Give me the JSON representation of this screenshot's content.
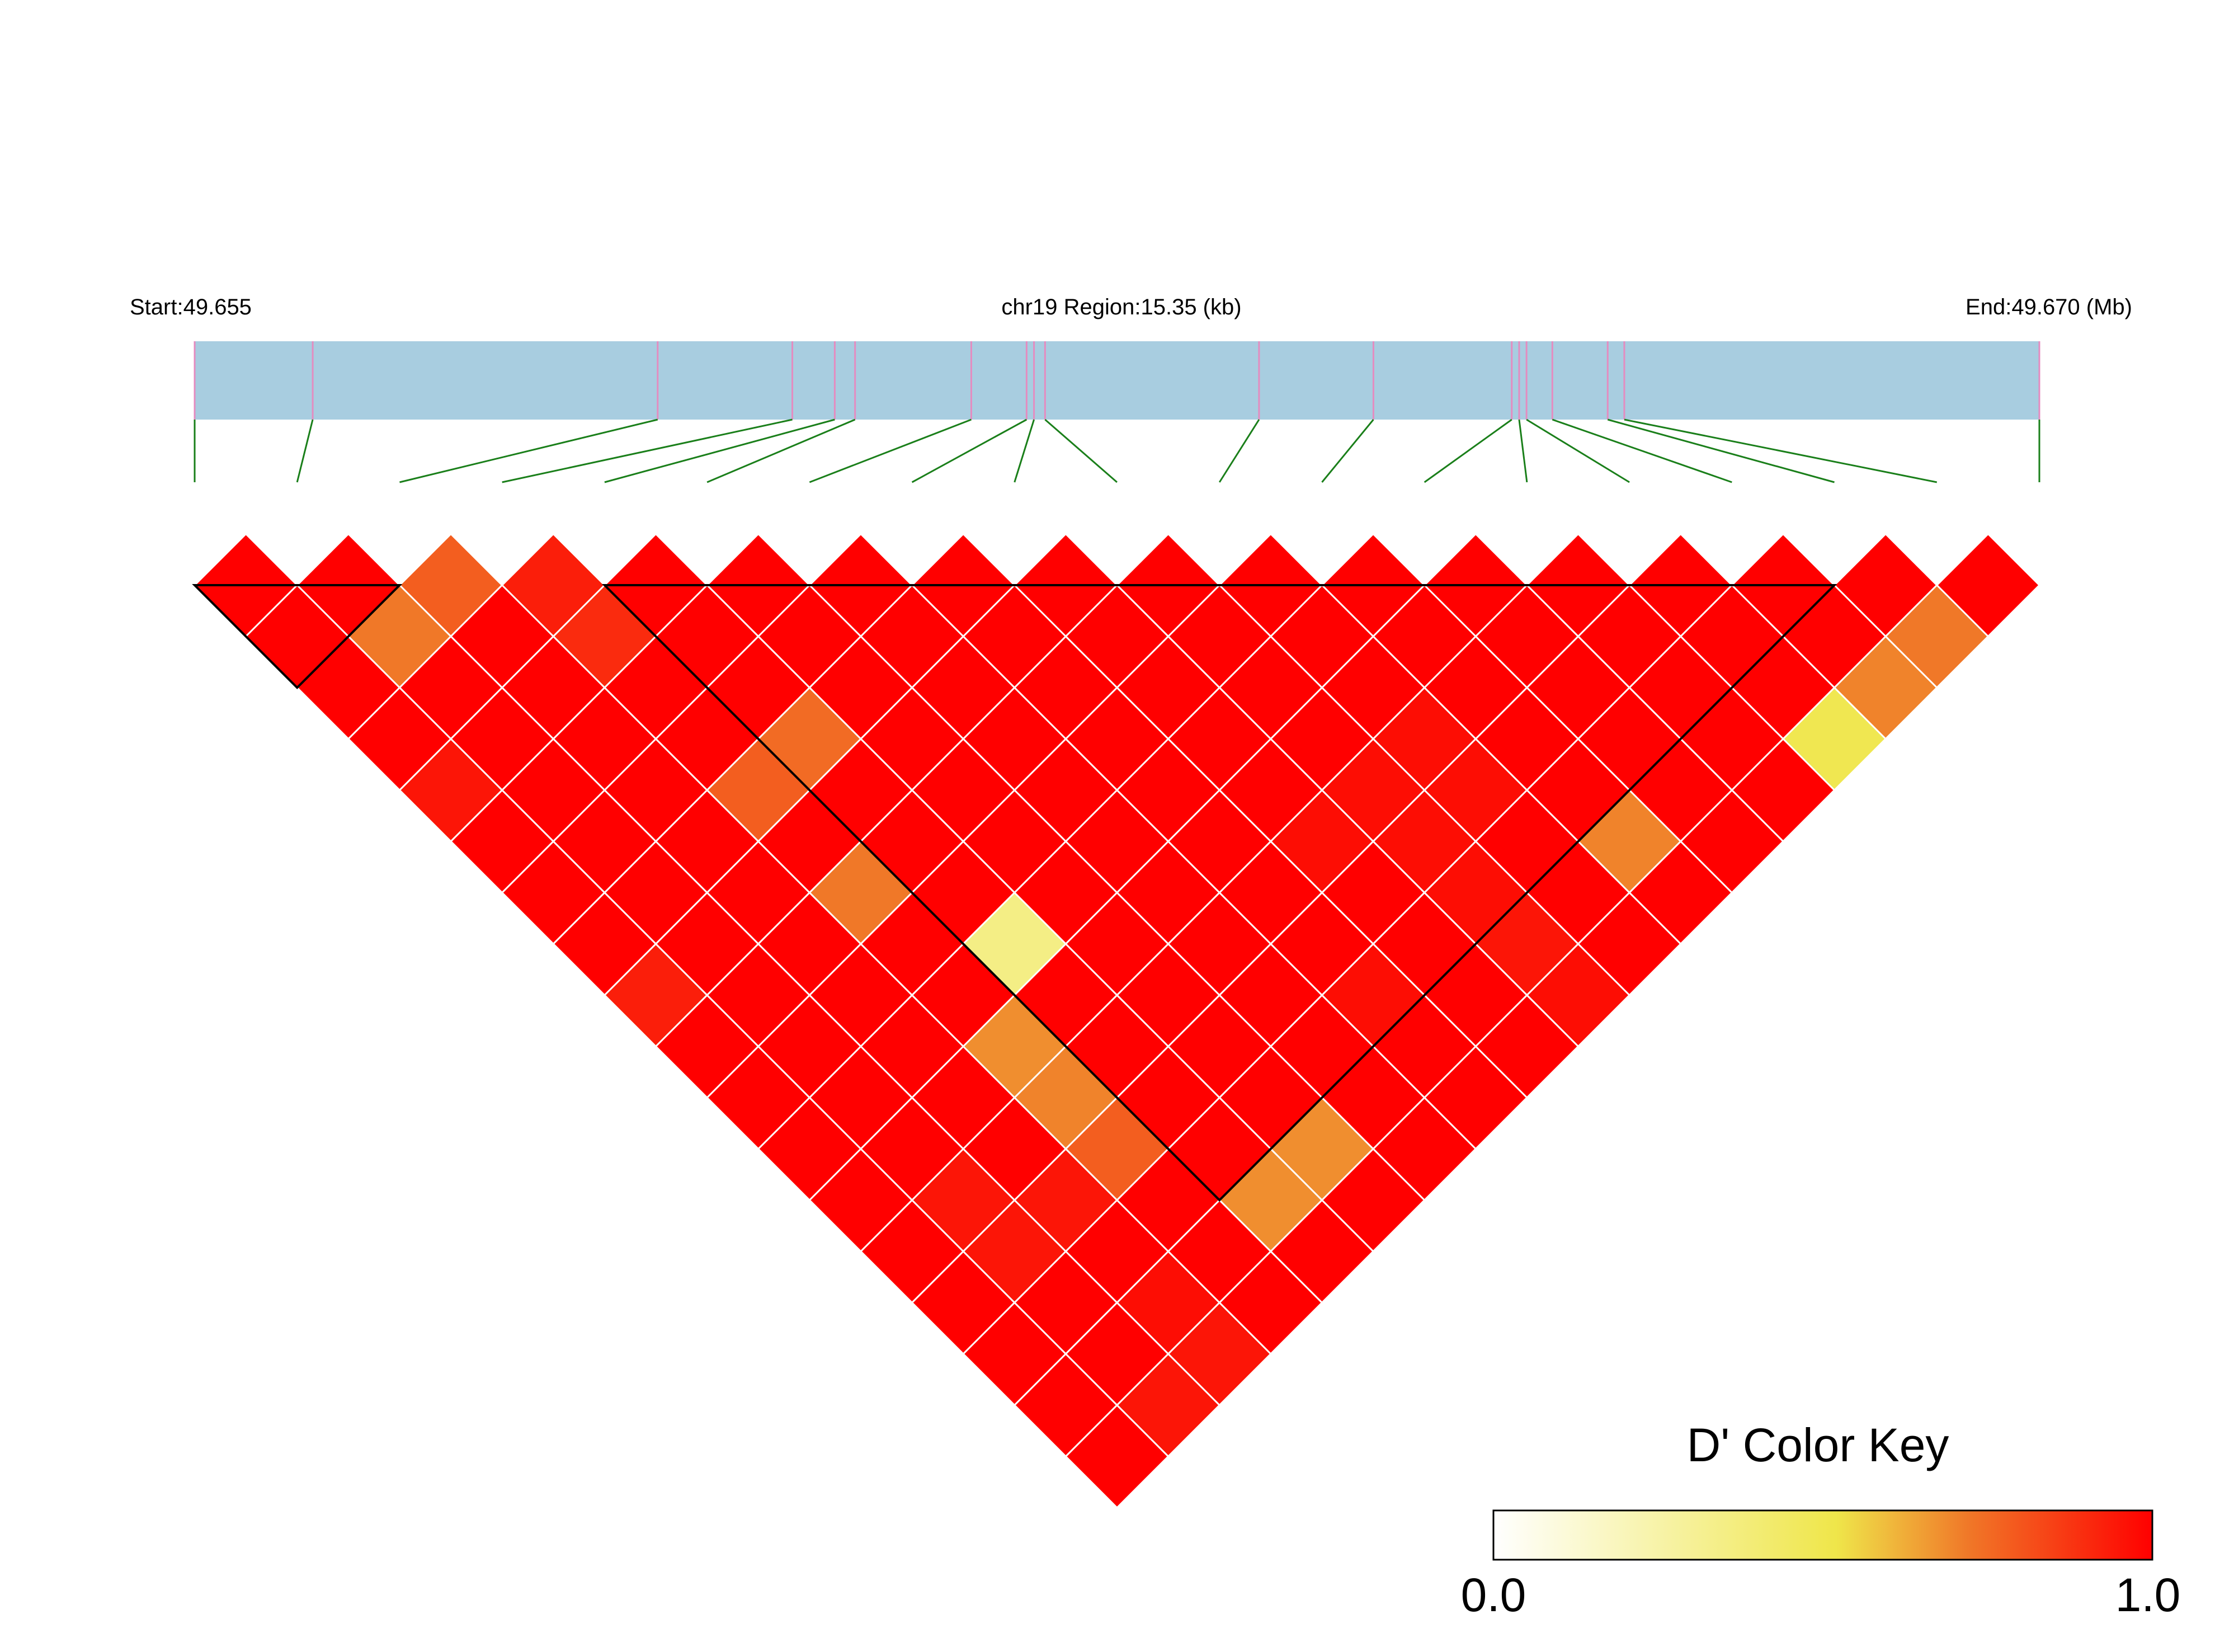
{
  "chart_data": {
    "type": "heatmap",
    "title": "",
    "header": {
      "start_label": "Start:49.655",
      "region_label": "chr19 Region:15.35 (kb)",
      "end_label": "End:49.670 (Mb)"
    },
    "region": {
      "chromosome": "chr19",
      "start_mb": 49.655,
      "end_mb": 49.67,
      "length_kb": 15.35
    },
    "snp_count": 19,
    "snp_positions_fraction": [
      0.0,
      0.064,
      0.251,
      0.324,
      0.347,
      0.358,
      0.421,
      0.451,
      0.455,
      0.461,
      0.577,
      0.639,
      0.714,
      0.718,
      0.722,
      0.736,
      0.766,
      0.775,
      1.0
    ],
    "ld_matrix_description": "D' values for pairs (i, j) with i < j; row k holds pairs (i, i+k+1)",
    "d_prime": [
      [
        1.0,
        1.0,
        0.78,
        0.93,
        1.0,
        1.0,
        1.0,
        1.0,
        1.0,
        1.0,
        1.0,
        1.0,
        1.0,
        1.0,
        1.0,
        1.0,
        1.0,
        1.0
      ],
      [
        1.0,
        0.72,
        1.0,
        0.9,
        1.0,
        1.0,
        1.0,
        1.0,
        1.0,
        1.0,
        1.0,
        1.0,
        1.0,
        1.0,
        1.0,
        1.0,
        0.72
      ],
      [
        1.0,
        1.0,
        1.0,
        1.0,
        1.0,
        1.0,
        1.0,
        1.0,
        1.0,
        1.0,
        1.0,
        1.0,
        1.0,
        1.0,
        1.0,
        0.7
      ],
      [
        1.0,
        1.0,
        1.0,
        1.0,
        0.75,
        1.0,
        1.0,
        1.0,
        1.0,
        1.0,
        0.97,
        1.0,
        1.0,
        1.0,
        0.5
      ],
      [
        0.95,
        1.0,
        1.0,
        0.78,
        1.0,
        1.0,
        1.0,
        1.0,
        1.0,
        0.97,
        0.97,
        1.0,
        1.0,
        1.0
      ],
      [
        1.0,
        1.0,
        1.0,
        1.0,
        1.0,
        1.0,
        1.0,
        1.0,
        0.97,
        0.97,
        1.0,
        0.7,
        1.0
      ],
      [
        1.0,
        1.0,
        1.0,
        0.72,
        1.0,
        1.0,
        1.0,
        1.0,
        1.0,
        0.97,
        1.0,
        1.0
      ],
      [
        1.0,
        1.0,
        1.0,
        1.0,
        0.35,
        1.0,
        1.0,
        1.0,
        1.0,
        0.95,
        1.0
      ],
      [
        0.93,
        1.0,
        1.0,
        1.0,
        1.0,
        1.0,
        1.0,
        0.97,
        1.0,
        0.97
      ],
      [
        1.0,
        1.0,
        1.0,
        0.68,
        1.0,
        1.0,
        1.0,
        1.0,
        1.0
      ],
      [
        1.0,
        1.0,
        1.0,
        0.7,
        1.0,
        1.0,
        1.0,
        1.0
      ],
      [
        1.0,
        1.0,
        1.0,
        0.78,
        1.0,
        0.68,
        1.0
      ],
      [
        1.0,
        0.95,
        0.95,
        1.0,
        0.68,
        1.0
      ],
      [
        1.0,
        0.95,
        1.0,
        1.0,
        1.0
      ],
      [
        1.0,
        1.0,
        0.97,
        1.0
      ],
      [
        1.0,
        1.0,
        0.95
      ],
      [
        1.0,
        0.95
      ],
      [
        1.0
      ]
    ],
    "haplotype_blocks": [
      {
        "first_snp": 1,
        "last_snp": 3
      },
      {
        "first_snp": 5,
        "last_snp": 17
      }
    ],
    "colors": {
      "region_bar": "#a8cde0",
      "snp_line": "#e48cc0",
      "connector": "#1a7f1a",
      "block_outline": "#000000",
      "cell_border": "#ffffff"
    },
    "color_key": {
      "title": "D' Color Key",
      "min_label": "0.0",
      "max_label": "1.0",
      "min": 0.0,
      "max": 1.0,
      "stops": [
        "#ffffff",
        "#efe64a",
        "#f07828",
        "#ff0000"
      ]
    }
  }
}
